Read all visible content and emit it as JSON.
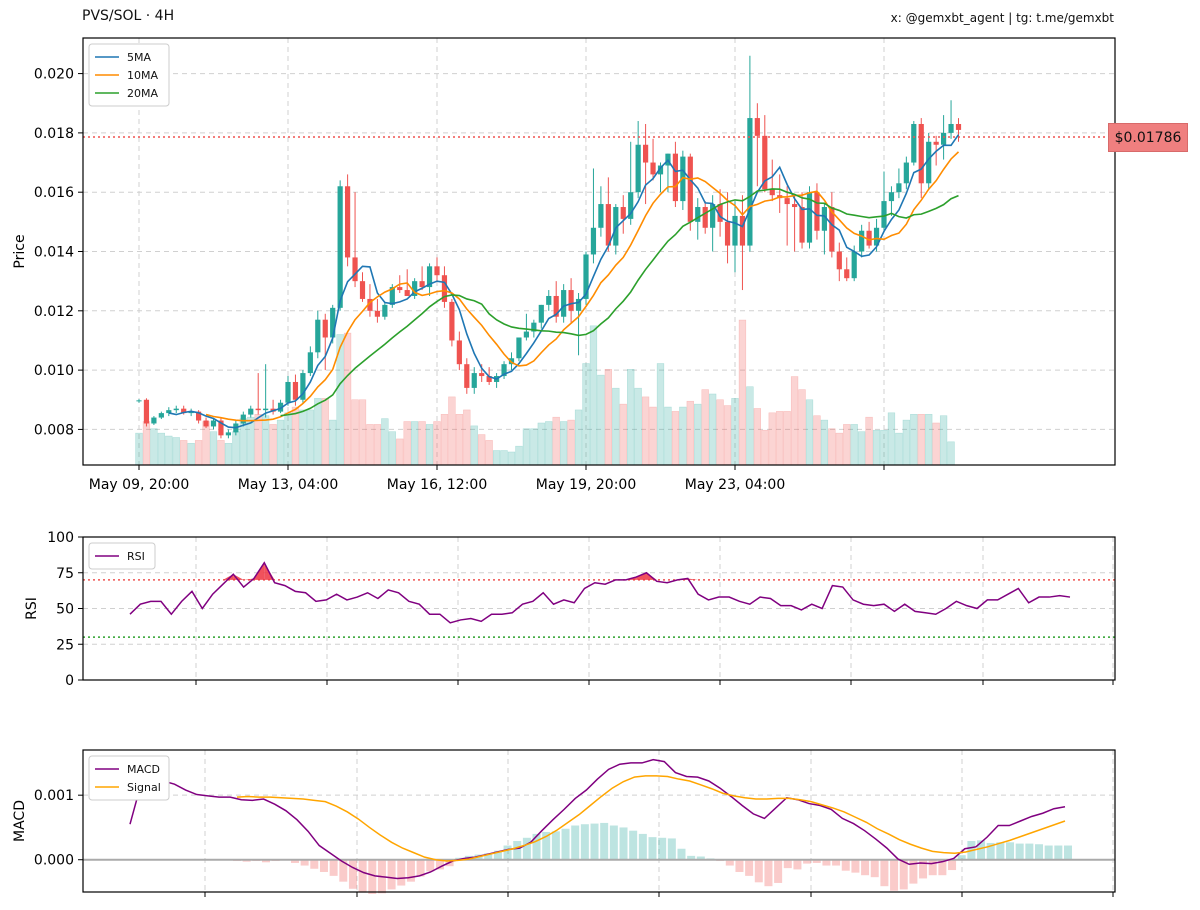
{
  "header": {
    "title": "PVS/SOL · 4H",
    "credit": "x: @gemxbt_agent | tg: t.me/gemxbt"
  },
  "current_price_label": "$0.01786",
  "colors": {
    "up": "#26a69a",
    "down": "#ef5350",
    "ma5": "#1f77b4",
    "ma10": "#ff8c00",
    "ma20": "#2ca02c",
    "rsi": "#800080",
    "macd": "#800080",
    "signal": "#ffa500",
    "price_line": "#ef5350",
    "rsi_overbought": "#ef5350",
    "rsi_oversold": "#2ca02c"
  },
  "chart_data": [
    {
      "type": "candlestick",
      "title": "PVS/SOL · 4H",
      "ylabel": "Price",
      "ylim": [
        0.0068,
        0.0212
      ],
      "yticks": [
        "0.008",
        "0.010",
        "0.012",
        "0.014",
        "0.016",
        "0.018",
        "0.020"
      ],
      "xtick_labels": [
        "May 09, 20:00",
        "May 13, 04:00",
        "May 16, 12:00",
        "May 19, 20:00",
        "May 23, 04:00"
      ],
      "xtick_index": [
        0,
        20,
        40,
        60,
        80
      ],
      "current_price": 0.01786,
      "legend": [
        "5MA",
        "10MA",
        "20MA"
      ],
      "legend_position": "upper-left",
      "grid": true,
      "ohlc": [
        [
          0.00895,
          0.00902,
          0.0089,
          0.00898
        ],
        [
          0.009,
          0.00905,
          0.0081,
          0.0082
        ],
        [
          0.0082,
          0.00845,
          0.00815,
          0.0084
        ],
        [
          0.0084,
          0.0086,
          0.00835,
          0.00855
        ],
        [
          0.00855,
          0.00875,
          0.00845,
          0.00865
        ],
        [
          0.00865,
          0.0088,
          0.00855,
          0.0087
        ],
        [
          0.0087,
          0.0088,
          0.0085,
          0.00855
        ],
        [
          0.00855,
          0.0087,
          0.00845,
          0.0086
        ],
        [
          0.0086,
          0.00865,
          0.0082,
          0.0083
        ],
        [
          0.0083,
          0.0084,
          0.00805,
          0.0081
        ],
        [
          0.0081,
          0.00835,
          0.008,
          0.0083
        ],
        [
          0.0083,
          0.0084,
          0.0077,
          0.0078
        ],
        [
          0.0078,
          0.008,
          0.0077,
          0.0079
        ],
        [
          0.0079,
          0.0083,
          0.0078,
          0.0082
        ],
        [
          0.0082,
          0.0086,
          0.0081,
          0.0085
        ],
        [
          0.0085,
          0.0088,
          0.0084,
          0.0087
        ],
        [
          0.0087,
          0.0099,
          0.0085,
          0.00865
        ],
        [
          0.00865,
          0.0102,
          0.0084,
          0.0087
        ],
        [
          0.0087,
          0.009,
          0.0085,
          0.0086
        ],
        [
          0.0086,
          0.009,
          0.00855,
          0.0089
        ],
        [
          0.0089,
          0.0098,
          0.0088,
          0.0096
        ],
        [
          0.0096,
          0.00985,
          0.0088,
          0.009
        ],
        [
          0.009,
          0.01,
          0.0089,
          0.0099
        ],
        [
          0.0099,
          0.0108,
          0.0098,
          0.0106
        ],
        [
          0.0106,
          0.012,
          0.0104,
          0.0117
        ],
        [
          0.0117,
          0.0119,
          0.01,
          0.0111
        ],
        [
          0.0111,
          0.0122,
          0.0109,
          0.0121
        ],
        [
          0.0121,
          0.0164,
          0.012,
          0.0162
        ],
        [
          0.0162,
          0.0166,
          0.0135,
          0.0138
        ],
        [
          0.0138,
          0.016,
          0.0128,
          0.013
        ],
        [
          0.013,
          0.0133,
          0.0123,
          0.0124
        ],
        [
          0.0124,
          0.0129,
          0.0118,
          0.012
        ],
        [
          0.012,
          0.0124,
          0.0116,
          0.0118
        ],
        [
          0.0118,
          0.0123,
          0.0117,
          0.0122
        ],
        [
          0.0122,
          0.0129,
          0.0121,
          0.0128
        ],
        [
          0.0128,
          0.0132,
          0.0126,
          0.0127
        ],
        [
          0.0127,
          0.0134,
          0.0125,
          0.0125
        ],
        [
          0.0125,
          0.0131,
          0.0124,
          0.013
        ],
        [
          0.013,
          0.0135,
          0.0127,
          0.0128
        ],
        [
          0.0128,
          0.0136,
          0.0125,
          0.0135
        ],
        [
          0.0135,
          0.0138,
          0.013,
          0.0132
        ],
        [
          0.0132,
          0.0135,
          0.0121,
          0.0123
        ],
        [
          0.0123,
          0.0124,
          0.0108,
          0.011
        ],
        [
          0.011,
          0.0113,
          0.01,
          0.0102
        ],
        [
          0.0102,
          0.0104,
          0.0092,
          0.0094
        ],
        [
          0.0094,
          0.0101,
          0.0092,
          0.0099
        ],
        [
          0.0099,
          0.0102,
          0.0096,
          0.0098
        ],
        [
          0.0098,
          0.0101,
          0.0095,
          0.0096
        ],
        [
          0.0096,
          0.0099,
          0.0094,
          0.0098
        ],
        [
          0.0098,
          0.0103,
          0.0097,
          0.0102
        ],
        [
          0.0102,
          0.0106,
          0.01,
          0.0104
        ],
        [
          0.0104,
          0.0111,
          0.0103,
          0.0111
        ],
        [
          0.0111,
          0.0119,
          0.011,
          0.0113
        ],
        [
          0.0113,
          0.0117,
          0.0111,
          0.0116
        ],
        [
          0.0116,
          0.0122,
          0.0114,
          0.0122
        ],
        [
          0.0122,
          0.0127,
          0.012,
          0.0125
        ],
        [
          0.0125,
          0.013,
          0.0116,
          0.0118
        ],
        [
          0.0118,
          0.0129,
          0.0116,
          0.0127
        ],
        [
          0.0127,
          0.0131,
          0.0116,
          0.012
        ],
        [
          0.012,
          0.0126,
          0.0105,
          0.0124
        ],
        [
          0.0124,
          0.014,
          0.0122,
          0.0139
        ],
        [
          0.0139,
          0.0168,
          0.0136,
          0.0148
        ],
        [
          0.0148,
          0.0162,
          0.0145,
          0.0156
        ],
        [
          0.0156,
          0.0165,
          0.014,
          0.0142
        ],
        [
          0.0142,
          0.0156,
          0.0139,
          0.0155
        ],
        [
          0.0155,
          0.0159,
          0.0146,
          0.0151
        ],
        [
          0.0151,
          0.0177,
          0.0149,
          0.016
        ],
        [
          0.016,
          0.0184,
          0.0158,
          0.0176
        ],
        [
          0.0176,
          0.0183,
          0.0156,
          0.017
        ],
        [
          0.017,
          0.0178,
          0.0164,
          0.0166
        ],
        [
          0.0166,
          0.017,
          0.016,
          0.0169
        ],
        [
          0.0169,
          0.0173,
          0.016,
          0.0173
        ],
        [
          0.0173,
          0.0177,
          0.0155,
          0.0157
        ],
        [
          0.0157,
          0.0174,
          0.0154,
          0.0172
        ],
        [
          0.0172,
          0.0173,
          0.0147,
          0.015
        ],
        [
          0.015,
          0.0158,
          0.0144,
          0.0155
        ],
        [
          0.0155,
          0.0157,
          0.0146,
          0.0148
        ],
        [
          0.0148,
          0.0159,
          0.014,
          0.0156
        ],
        [
          0.0156,
          0.0161,
          0.0145,
          0.015
        ],
        [
          0.015,
          0.016,
          0.0136,
          0.0142
        ],
        [
          0.0142,
          0.0157,
          0.0133,
          0.0152
        ],
        [
          0.0152,
          0.0159,
          0.0127,
          0.0142
        ],
        [
          0.0142,
          0.0206,
          0.014,
          0.0185
        ],
        [
          0.0185,
          0.019,
          0.0162,
          0.0179
        ],
        [
          0.0179,
          0.0186,
          0.016,
          0.0161
        ],
        [
          0.0161,
          0.0171,
          0.0157,
          0.0159
        ],
        [
          0.0159,
          0.0166,
          0.0153,
          0.0158
        ],
        [
          0.0158,
          0.0162,
          0.0142,
          0.0156
        ],
        [
          0.0156,
          0.0159,
          0.014,
          0.0155
        ],
        [
          0.0155,
          0.016,
          0.0141,
          0.0143
        ],
        [
          0.0143,
          0.0162,
          0.0141,
          0.016
        ],
        [
          0.016,
          0.0163,
          0.0144,
          0.0147
        ],
        [
          0.0147,
          0.0156,
          0.0139,
          0.0155
        ],
        [
          0.0155,
          0.016,
          0.0138,
          0.014
        ],
        [
          0.014,
          0.0143,
          0.013,
          0.0134
        ],
        [
          0.0134,
          0.0138,
          0.013,
          0.0131
        ],
        [
          0.0131,
          0.0142,
          0.013,
          0.014
        ],
        [
          0.014,
          0.0149,
          0.0138,
          0.0147
        ],
        [
          0.0147,
          0.015,
          0.0141,
          0.0142
        ],
        [
          0.0142,
          0.0151,
          0.014,
          0.0148
        ],
        [
          0.0148,
          0.0167,
          0.0147,
          0.0157
        ],
        [
          0.0157,
          0.0162,
          0.0152,
          0.016
        ],
        [
          0.016,
          0.0168,
          0.0158,
          0.0163
        ],
        [
          0.0163,
          0.0172,
          0.0161,
          0.017
        ],
        [
          0.017,
          0.0184,
          0.0169,
          0.0183
        ],
        [
          0.0183,
          0.0185,
          0.0158,
          0.0163
        ],
        [
          0.0163,
          0.018,
          0.0161,
          0.0177
        ],
        [
          0.0177,
          0.0179,
          0.0169,
          0.0176
        ],
        [
          0.0176,
          0.0186,
          0.0171,
          0.018
        ],
        [
          0.018,
          0.0191,
          0.0178,
          0.0183
        ],
        [
          0.0183,
          0.0185,
          0.0177,
          0.0181
        ]
      ],
      "volume": [
        0.22,
        0.3,
        0.25,
        0.22,
        0.2,
        0.19,
        0.17,
        0.15,
        0.17,
        0.3,
        0.23,
        0.17,
        0.15,
        0.23,
        0.32,
        0.33,
        0.35,
        0.34,
        0.28,
        0.31,
        0.36,
        0.4,
        0.38,
        0.38,
        0.46,
        0.46,
        0.31,
        0.9,
        0.91,
        0.45,
        0.45,
        0.28,
        0.28,
        0.32,
        0.23,
        0.18,
        0.3,
        0.3,
        0.3,
        0.28,
        0.3,
        0.35,
        0.47,
        0.35,
        0.38,
        0.27,
        0.21,
        0.17,
        0.1,
        0.1,
        0.09,
        0.13,
        0.25,
        0.25,
        0.29,
        0.3,
        0.33,
        0.3,
        0.31,
        0.38,
        0.7,
        0.96,
        0.62,
        0.66,
        0.53,
        0.42,
        0.66,
        0.53,
        0.47,
        0.4,
        0.7,
        0.4,
        0.37,
        0.4,
        0.44,
        0.42,
        0.52,
        0.49,
        0.45,
        0.41,
        0.46,
        1.0,
        0.54,
        0.39,
        0.24,
        0.36,
        0.37,
        0.37,
        0.61,
        0.52,
        0.45,
        0.34,
        0.31,
        0.25,
        0.22,
        0.28,
        0.28,
        0.23,
        0.33,
        0.24,
        0.24,
        0.36,
        0.22,
        0.31,
        0.35,
        0.35,
        0.35,
        0.29,
        0.34,
        0.16
      ]
    },
    {
      "type": "line",
      "ylabel": "RSI",
      "ylim": [
        0,
        100
      ],
      "yticks": [
        0,
        25,
        50,
        75,
        100
      ],
      "legend": [
        "RSI"
      ],
      "legend_position": "upper-left",
      "overbought": 70,
      "oversold": 30,
      "grid": true,
      "rsi": [
        46,
        53,
        55,
        55,
        46,
        55,
        62,
        50,
        60,
        67,
        74,
        65,
        71,
        82,
        68,
        66,
        62,
        61,
        55,
        56,
        60,
        56,
        58,
        61,
        57,
        63,
        61,
        55,
        53,
        46,
        46,
        40,
        42,
        43,
        41,
        46,
        46,
        47,
        53,
        55,
        61,
        53,
        56,
        54,
        64,
        68,
        67,
        70,
        70,
        72,
        75,
        69,
        68,
        70,
        71,
        60,
        56,
        58,
        58,
        55,
        53,
        58,
        57,
        52,
        52,
        49,
        53,
        50,
        66,
        65,
        56,
        53,
        52,
        53,
        48,
        53,
        48,
        47,
        46,
        50,
        55,
        52,
        50,
        56,
        56,
        60,
        64,
        54,
        58,
        58,
        59,
        58
      ]
    },
    {
      "type": "line",
      "ylabel": "MACD",
      "ylim": [
        -0.0005,
        0.0017
      ],
      "yticks": [
        "0.000",
        "0.001"
      ],
      "legend": [
        "MACD",
        "Signal"
      ],
      "legend_position": "upper-left",
      "grid": true,
      "macd": [
        0.00055,
        0.00118,
        0.0012,
        0.00122,
        0.00117,
        0.00108,
        0.00101,
        0.00099,
        0.00097,
        0.00097,
        0.00093,
        0.00092,
        0.00094,
        0.00086,
        0.00076,
        0.00062,
        0.00044,
        0.00022,
        0.0001,
        -2e-05,
        -0.00012,
        -0.0002,
        -0.00025,
        -0.00027,
        -0.00029,
        -0.00028,
        -0.00025,
        -0.00019,
        -0.0001,
        -2e-05,
        2e-05,
        4e-05,
        8e-05,
        0.00012,
        0.00016,
        0.00018,
        0.00027,
        0.00045,
        0.00062,
        0.00078,
        0.00095,
        0.00108,
        0.00125,
        0.0014,
        0.00148,
        0.0015,
        0.0015,
        0.00155,
        0.00152,
        0.00135,
        0.00129,
        0.00128,
        0.00122,
        0.00111,
        0.00098,
        0.00084,
        0.00071,
        0.00064,
        0.0008,
        0.00096,
        0.00093,
        0.00087,
        0.00084,
        0.00078,
        0.00064,
        0.00056,
        0.00045,
        0.00032,
        0.00018,
        1e-05,
        -7e-05,
        -5e-05,
        -6e-05,
        -3e-05,
        2e-05,
        0.00017,
        0.0002,
        0.00035,
        0.00053,
        0.00053,
        0.0006,
        0.00067,
        0.00072,
        0.00079,
        0.00082
      ],
      "signal": [
        0.00097,
        0.00098,
        0.00097,
        0.00097,
        0.00096,
        0.00095,
        0.00094,
        0.00092,
        0.0009,
        0.00083,
        0.00074,
        0.00063,
        0.0005,
        0.00038,
        0.00027,
        0.00018,
        0.00011,
        4e-05,
        0.0,
        -2e-05,
        -1e-05,
        1e-05,
        5e-05,
        9e-05,
        0.00013,
        0.00017,
        0.00022,
        0.00028,
        0.00036,
        0.00046,
        0.00058,
        0.0007,
        0.00084,
        0.00098,
        0.00111,
        0.00121,
        0.00128,
        0.0013,
        0.0013,
        0.00129,
        0.00125,
        0.00122,
        0.00116,
        0.0011,
        0.00103,
        0.00099,
        0.00096,
        0.00094,
        0.00094,
        0.00095,
        0.00095,
        0.00093,
        0.0009,
        0.00085,
        0.0008,
        0.00074,
        0.00066,
        0.00058,
        0.00048,
        0.0004,
        0.00031,
        0.00024,
        0.00018,
        0.00013,
        0.00011,
        0.0001,
        0.00012,
        0.00016,
        0.0002,
        0.00025,
        0.0003,
        0.00036,
        0.00042,
        0.00048,
        0.00054,
        0.0006
      ],
      "histogram": [
        -2e-05,
        -3e-05,
        -2e-05,
        -4e-05,
        -2e-05,
        -1e-05,
        -5e-05,
        -9e-05,
        -0.00014,
        -0.00019,
        -0.00025,
        -0.00034,
        -0.00045,
        -0.00051,
        -0.00053,
        -0.00052,
        -0.00046,
        -0.0004,
        -0.00034,
        -0.00026,
        -0.00018,
        -0.00015,
        -0.0001,
        3e-05,
        6e-05,
        8e-05,
        0.0001,
        0.00014,
        0.00022,
        0.00029,
        0.00034,
        0.0004,
        0.00043,
        0.00044,
        0.00048,
        0.00053,
        0.00055,
        0.00056,
        0.00057,
        0.00053,
        0.0005,
        0.00045,
        0.0004,
        0.00035,
        0.00034,
        0.00033,
        0.00017,
        6e-05,
        5e-05,
        2e-05,
        -2e-05,
        -9e-05,
        -0.00019,
        -0.00025,
        -0.00035,
        -0.00041,
        -0.00036,
        -0.00013,
        -0.00015,
        -6e-05,
        -5e-05,
        -9e-05,
        -9e-05,
        -0.00017,
        -0.0002,
        -0.00024,
        -0.00027,
        -0.00041,
        -0.00048,
        -0.00046,
        -0.00037,
        -0.00029,
        -0.00024,
        -0.00024,
        -0.00016,
        7e-05,
        0.00029,
        0.0003,
        0.00026,
        0.00027,
        0.00027,
        0.00025,
        0.00025,
        0.00024,
        0.00022,
        0.00022,
        0.00022
      ]
    }
  ]
}
